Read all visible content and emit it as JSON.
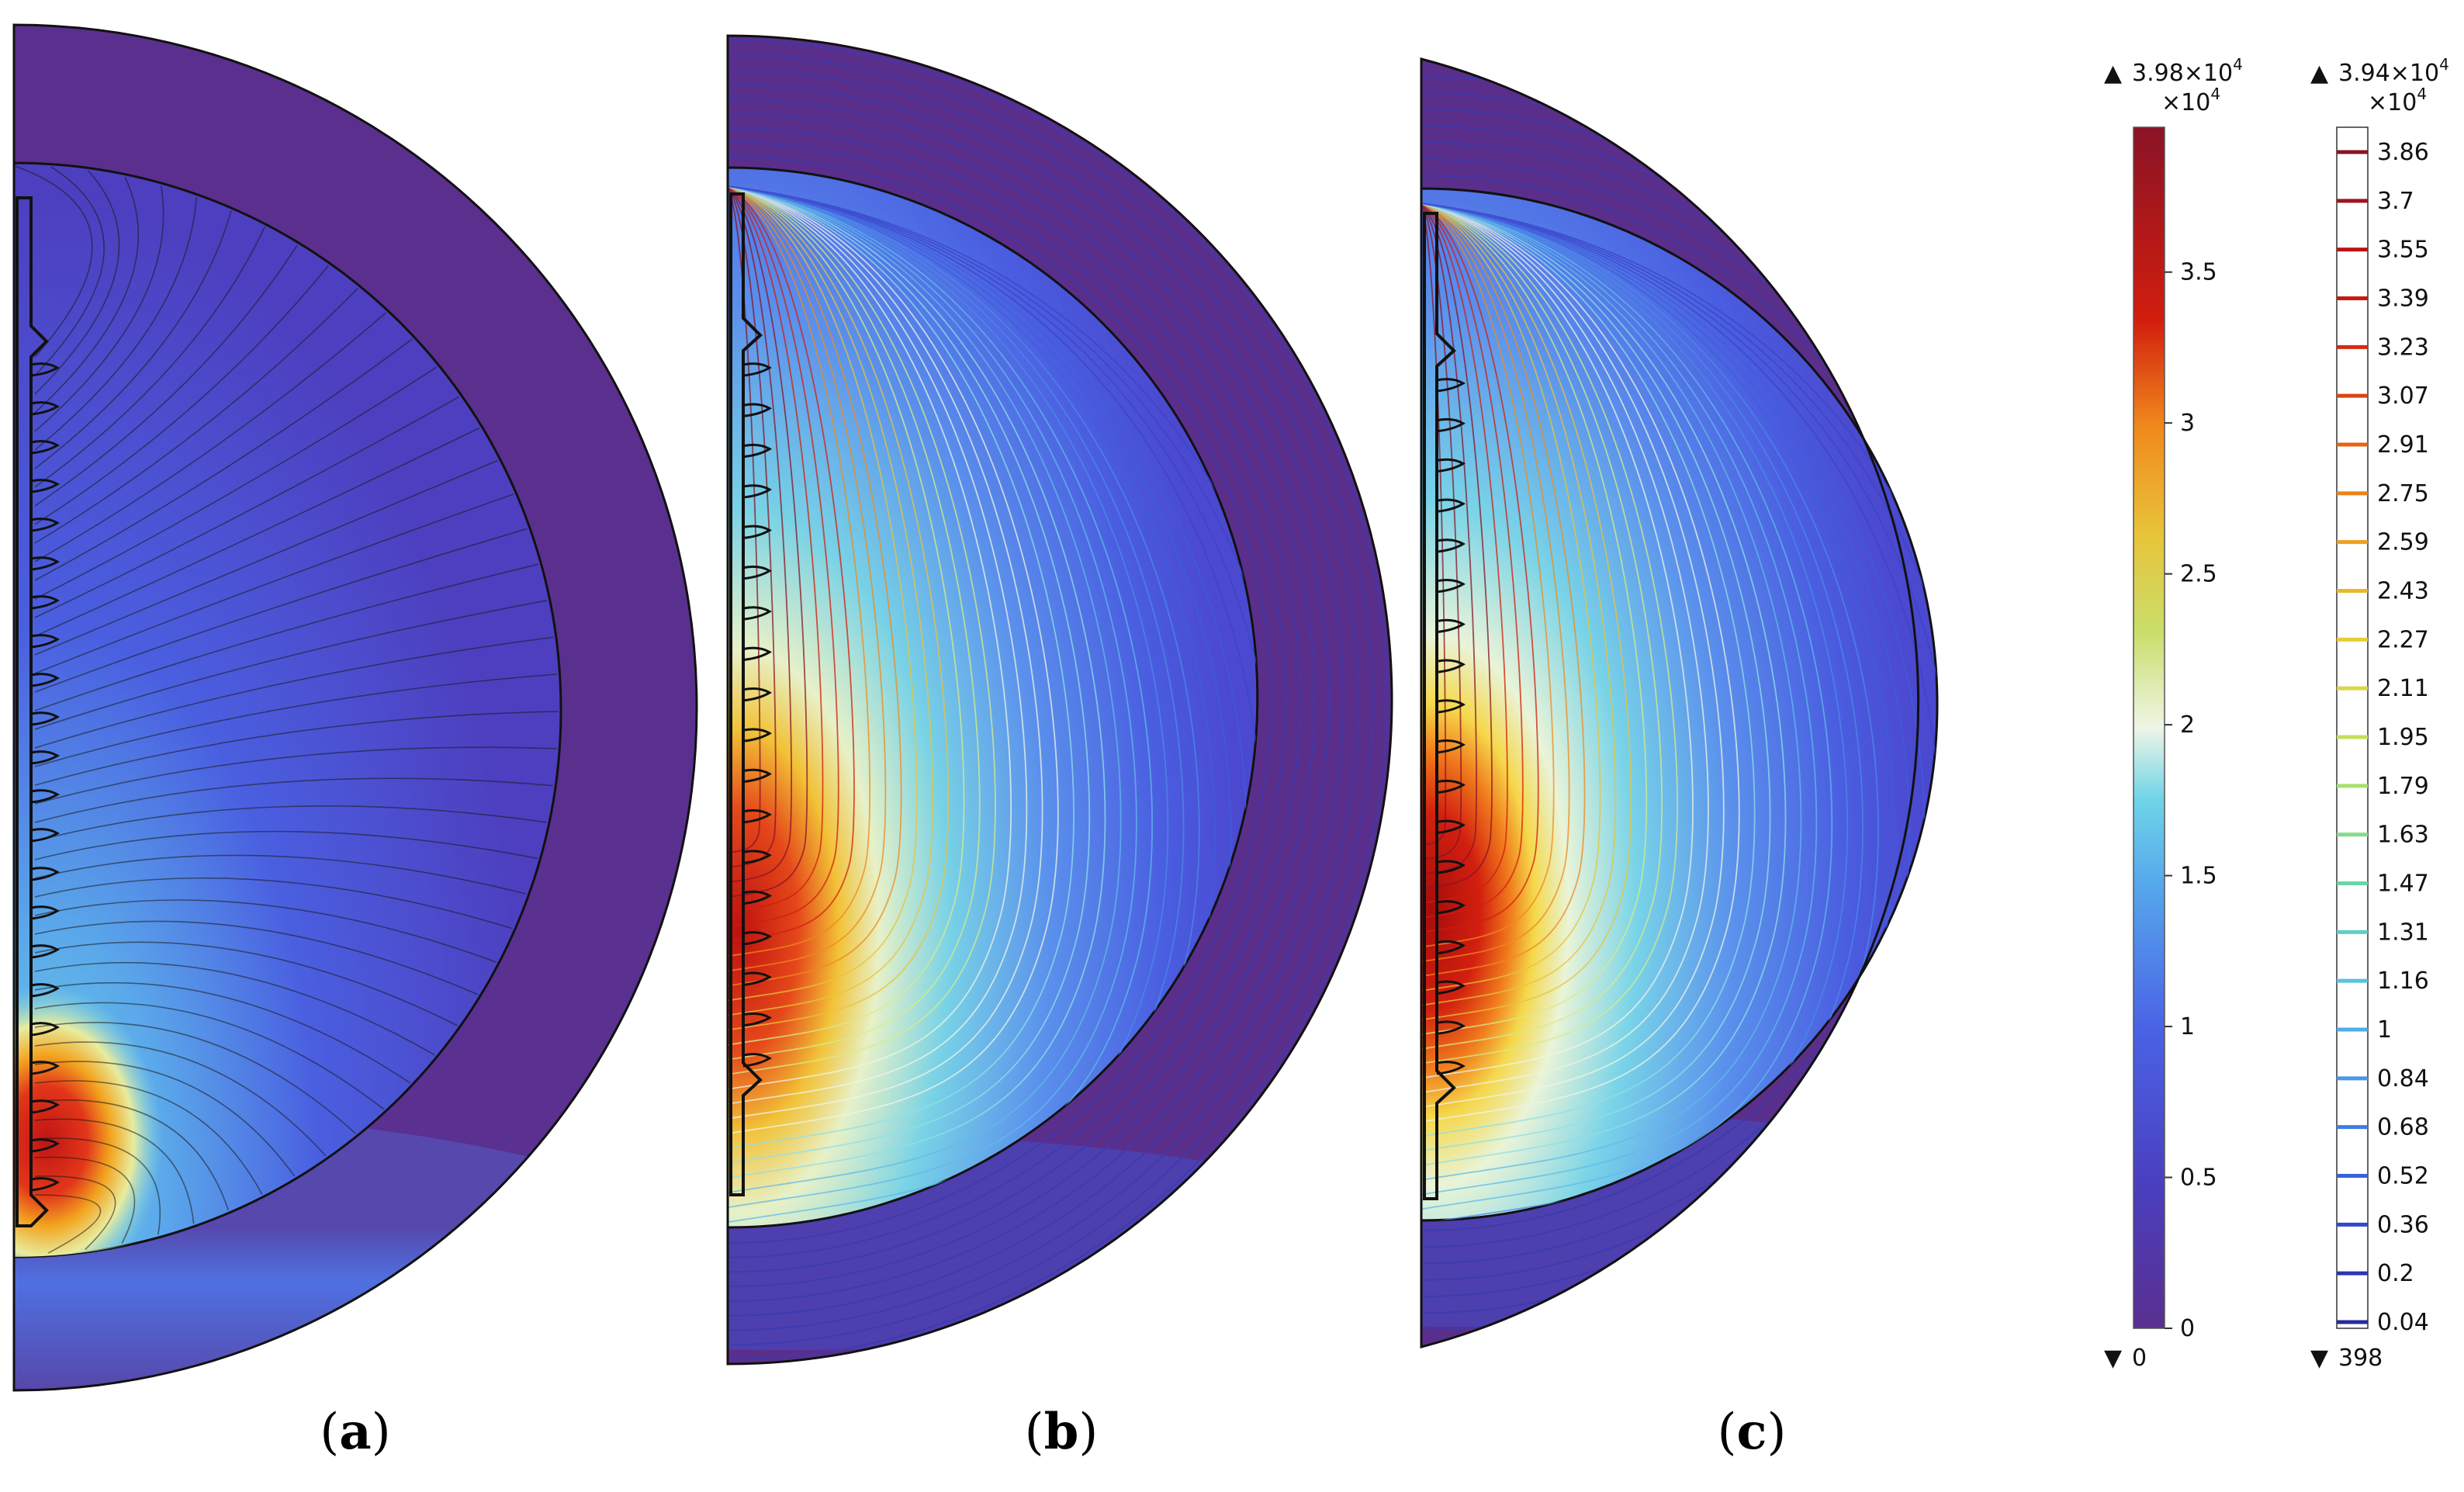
{
  "panels": [
    {
      "label_open": "(",
      "label_letter": "a",
      "label_close": ")",
      "peak_region": "lower",
      "peak_color": "#c4100b"
    },
    {
      "label_open": "(",
      "label_letter": "b",
      "label_close": ")",
      "peak_region": "lower-half",
      "peak_color": "#c4100b"
    },
    {
      "label_open": "(",
      "label_letter": "c",
      "label_close": ")",
      "peak_region": "lower-half-intense",
      "peak_color": "#b00a0a"
    }
  ],
  "colorbar_continuous": {
    "max_label": "3.98×10",
    "max_exp": "4",
    "multiplier": "×10",
    "multiplier_exp": "4",
    "ticks": [
      "3.5",
      "3",
      "2.5",
      "2",
      "1.5",
      "1",
      "0.5",
      "0"
    ],
    "tick_values": [
      3.5,
      3.0,
      2.5,
      2.0,
      1.5,
      1.0,
      0.5,
      0.0
    ],
    "range": [
      0,
      3.98
    ],
    "min_label": "0"
  },
  "colorbar_contour": {
    "max_label": "3.94×10",
    "max_exp": "4",
    "multiplier": "×10",
    "multiplier_exp": "4",
    "levels": [
      "3.86",
      "3.7",
      "3.55",
      "3.39",
      "3.23",
      "3.07",
      "2.91",
      "2.75",
      "2.59",
      "2.43",
      "2.27",
      "2.11",
      "1.95",
      "1.79",
      "1.63",
      "1.47",
      "1.31",
      "1.16",
      "1",
      "0.84",
      "0.68",
      "0.52",
      "0.36",
      "0.2",
      "0.04"
    ],
    "range": [
      0.04,
      3.94
    ],
    "min_label": "398"
  },
  "colors": {
    "low": "#5a2f8f",
    "mid_blue": "#4a63e6",
    "cyan": "#6fd4e8",
    "white": "#eef5e6",
    "yellow": "#e8d43a",
    "orange": "#f08a1c",
    "red": "#d21d0d",
    "dark_red": "#8a1326"
  }
}
